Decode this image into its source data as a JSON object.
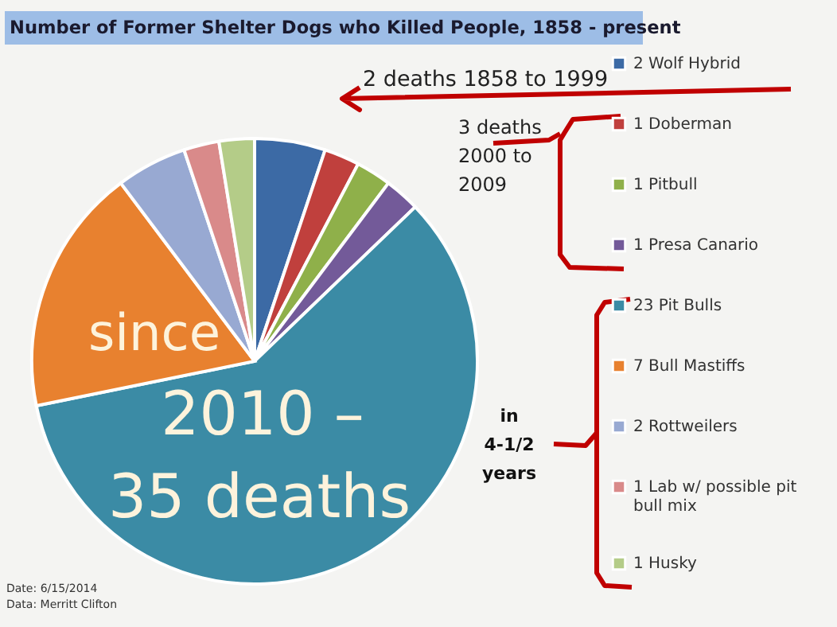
{
  "chart_data": {
    "type": "pie",
    "title": "Number of Former Shelter Dogs who Killed People, 1858 - present",
    "categories": [
      "2 Wolf Hybrid",
      "1 Doberman",
      "1 Pitbull",
      "1 Presa Canario",
      "23 Pit Bulls",
      "7 Bull Mastiffs",
      "2 Rottweilers",
      "1 Lab w/ possible pit bull mix",
      "1 Husky"
    ],
    "values": [
      2,
      1,
      1,
      1,
      23,
      7,
      2,
      1,
      1
    ],
    "colors": [
      "#3c6aa5",
      "#c0403d",
      "#8fb04a",
      "#735a99",
      "#3b8ba5",
      "#e8812f",
      "#98a9d2",
      "#d98a8a",
      "#b4cc88"
    ],
    "legend": "right",
    "annotations": [
      "2 deaths 1858 to 1999",
      "3 deaths 2000 to 2009",
      "in 4-1/2 years",
      "since 2010 – 35 deaths",
      "Date: 6/15/2014",
      "Data: Merritt Clifton"
    ]
  }
}
